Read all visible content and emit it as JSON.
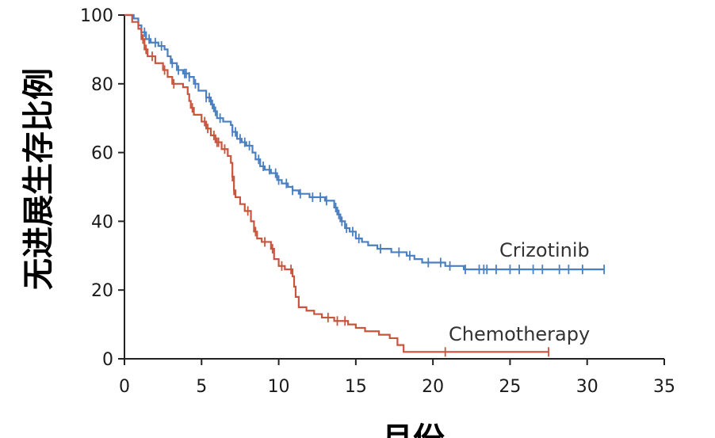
{
  "chart_data": {
    "type": "line",
    "xlabel": "月份",
    "ylabel": "无进展生存比例",
    "xlim": [
      0,
      35
    ],
    "ylim": [
      0,
      100
    ],
    "xticks": [
      0,
      5,
      10,
      15,
      20,
      25,
      30,
      35
    ],
    "yticks": [
      0,
      20,
      40,
      60,
      80,
      100
    ],
    "grid": false,
    "legend": "inline labels at line ends",
    "series": [
      {
        "name": "Crizotinib",
        "color": "#4a7fc0",
        "steps": [
          [
            0,
            100
          ],
          [
            0.6,
            99
          ],
          [
            0.9,
            97
          ],
          [
            1.1,
            95
          ],
          [
            1.4,
            93
          ],
          [
            1.7,
            92
          ],
          [
            2.2,
            91
          ],
          [
            2.6,
            90
          ],
          [
            2.8,
            88
          ],
          [
            3.0,
            86
          ],
          [
            3.4,
            84
          ],
          [
            3.8,
            83
          ],
          [
            4.2,
            82
          ],
          [
            4.5,
            80
          ],
          [
            4.8,
            78
          ],
          [
            5.3,
            76
          ],
          [
            5.6,
            74
          ],
          [
            5.8,
            72
          ],
          [
            6.0,
            70
          ],
          [
            6.4,
            69
          ],
          [
            6.9,
            68
          ],
          [
            7.0,
            66
          ],
          [
            7.3,
            64
          ],
          [
            7.6,
            63
          ],
          [
            7.9,
            62
          ],
          [
            8.3,
            60
          ],
          [
            8.5,
            58
          ],
          [
            8.8,
            56
          ],
          [
            9.1,
            55
          ],
          [
            9.5,
            54
          ],
          [
            9.9,
            52
          ],
          [
            10.2,
            51
          ],
          [
            10.6,
            50
          ],
          [
            10.9,
            49
          ],
          [
            11.3,
            48
          ],
          [
            12.0,
            47
          ],
          [
            13.0,
            46
          ],
          [
            13.6,
            44
          ],
          [
            13.8,
            42
          ],
          [
            14.0,
            40
          ],
          [
            14.3,
            38
          ],
          [
            14.6,
            37
          ],
          [
            15.0,
            35
          ],
          [
            15.4,
            34
          ],
          [
            15.8,
            33
          ],
          [
            16.4,
            32
          ],
          [
            17.3,
            31
          ],
          [
            18.3,
            30
          ],
          [
            18.8,
            29
          ],
          [
            19.3,
            28
          ],
          [
            20.8,
            27
          ],
          [
            22.0,
            26
          ]
        ],
        "end_x": 31.1,
        "censor_x": [
          1.3,
          1.6,
          2.0,
          2.4,
          3.1,
          3.5,
          3.9,
          4.0,
          4.2,
          4.6,
          5.3,
          5.5,
          5.7,
          5.9,
          6.2,
          7.0,
          7.2,
          7.5,
          7.8,
          8.1,
          8.7,
          9.0,
          9.4,
          9.8,
          10.0,
          10.5,
          10.9,
          11.4,
          12.2,
          12.7,
          13.1,
          13.7,
          13.9,
          14.1,
          14.4,
          14.8,
          15.2,
          16.6,
          17.8,
          18.5,
          19.7,
          20.5,
          21.1,
          22.1,
          23.0,
          23.3,
          23.5,
          24.1,
          25.0,
          25.6,
          26.5,
          27.1,
          28.2,
          28.8,
          29.7,
          31.1
        ]
      },
      {
        "name": "Chemotherapy",
        "color": "#c8553d",
        "steps": [
          [
            0,
            100
          ],
          [
            0.5,
            98
          ],
          [
            0.9,
            96
          ],
          [
            1.1,
            93
          ],
          [
            1.3,
            90
          ],
          [
            1.5,
            88
          ],
          [
            2.0,
            86
          ],
          [
            2.5,
            84
          ],
          [
            2.8,
            82
          ],
          [
            3.1,
            80
          ],
          [
            3.8,
            79
          ],
          [
            4.1,
            77
          ],
          [
            4.2,
            75
          ],
          [
            4.3,
            73
          ],
          [
            4.5,
            71
          ],
          [
            5.0,
            69
          ],
          [
            5.3,
            67
          ],
          [
            5.6,
            65
          ],
          [
            5.9,
            63
          ],
          [
            6.3,
            61
          ],
          [
            6.7,
            59
          ],
          [
            6.9,
            57
          ],
          [
            7.0,
            53
          ],
          [
            7.1,
            49
          ],
          [
            7.2,
            47
          ],
          [
            7.5,
            45
          ],
          [
            7.8,
            43
          ],
          [
            8.2,
            40
          ],
          [
            8.4,
            37
          ],
          [
            8.6,
            35
          ],
          [
            8.9,
            34
          ],
          [
            9.5,
            32
          ],
          [
            9.7,
            29
          ],
          [
            10.0,
            27
          ],
          [
            10.4,
            26
          ],
          [
            10.9,
            24
          ],
          [
            11.0,
            21
          ],
          [
            11.1,
            18
          ],
          [
            11.3,
            15
          ],
          [
            11.8,
            14
          ],
          [
            12.3,
            13
          ],
          [
            12.8,
            12
          ],
          [
            13.6,
            11
          ],
          [
            14.5,
            10
          ],
          [
            15.0,
            9
          ],
          [
            15.6,
            8
          ],
          [
            16.5,
            7
          ],
          [
            17.2,
            6
          ],
          [
            17.7,
            4
          ],
          [
            18.1,
            2
          ]
        ],
        "end_x": 27.5,
        "censor_x": [
          1.2,
          1.4,
          1.8,
          2.6,
          3.2,
          4.4,
          5.2,
          5.4,
          5.8,
          6.0,
          6.1,
          6.5,
          7.0,
          7.1,
          8.0,
          8.5,
          9.1,
          9.6,
          10.2,
          10.8,
          13.2,
          13.8,
          14.3,
          20.8,
          27.5
        ]
      }
    ]
  },
  "labels": {
    "crizotinib": "Crizotinib",
    "chemotherapy": "Chemotherapy"
  }
}
